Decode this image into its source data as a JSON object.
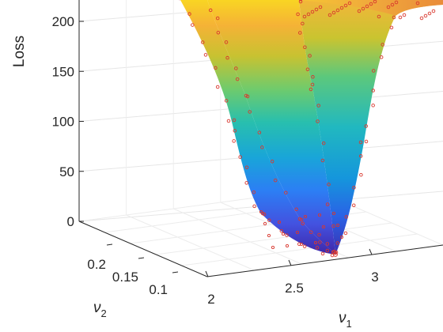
{
  "chart_data": {
    "type": "surface",
    "zlabel": "Loss",
    "xlabel": "ν1",
    "ylabel": "ν2",
    "z_ticks": [
      0,
      50,
      100,
      150,
      200
    ],
    "x_ticks": [
      2,
      2.5,
      3
    ],
    "y_ticks": [
      0.1,
      0.15,
      0.2
    ],
    "zlim": [
      0,
      220
    ],
    "grid": true,
    "colormap": "parula",
    "markers": "red open circles (sample points)",
    "minimum": {
      "nu1": 3.0,
      "nu2": 0.14,
      "loss": 0
    }
  },
  "labels": {
    "zlabel": "Loss",
    "xlabel_base": "ν",
    "xlabel_sub": "1",
    "ylabel_base": "ν",
    "ylabel_sub": "2"
  }
}
